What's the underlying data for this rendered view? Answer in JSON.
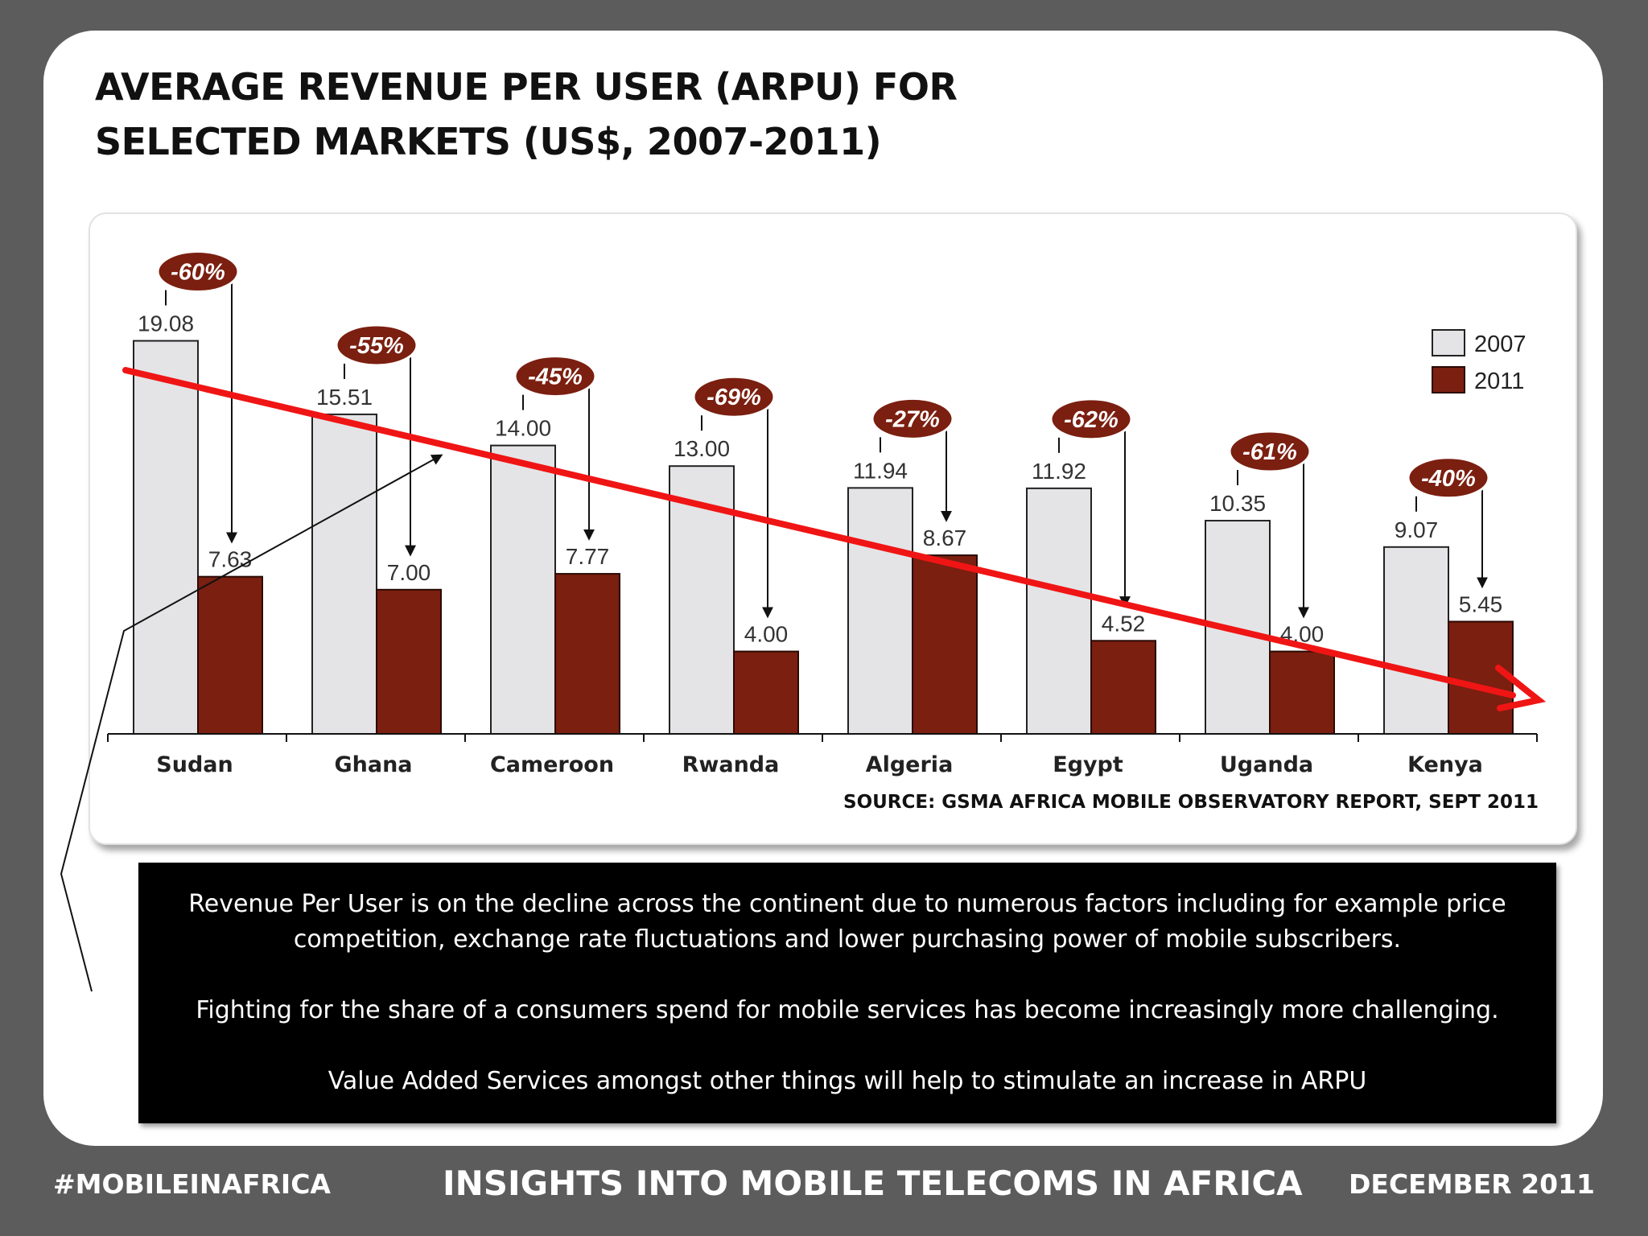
{
  "title": {
    "line1": "AVERAGE REVENUE PER USER (ARPU) FOR",
    "line2": "SELECTED MARKETS (US$, 2007-2011)"
  },
  "chart_data": {
    "type": "bar",
    "categories": [
      "Sudan",
      "Ghana",
      "Cameroon",
      "Rwanda",
      "Algeria",
      "Egypt",
      "Uganda",
      "Kenya"
    ],
    "series": [
      {
        "name": "2007",
        "values": [
          19.08,
          15.51,
          14.0,
          13.0,
          11.94,
          11.92,
          10.35,
          9.07
        ],
        "labels": [
          "19.08",
          "15.51",
          "14.00",
          "13.00",
          "11.94",
          "11.92",
          "10.35",
          "9.07"
        ]
      },
      {
        "name": "2011",
        "values": [
          7.63,
          7.0,
          7.77,
          4.0,
          8.67,
          4.52,
          4.0,
          5.45
        ],
        "labels": [
          "7.63",
          "7.00",
          "7.77",
          "4.00",
          "8.67",
          "4.52",
          "4.00",
          "5.45"
        ]
      }
    ],
    "change_labels": [
      "-60%",
      "-55%",
      "-45%",
      "-69%",
      "-27%",
      "-62%",
      "-61%",
      "-40%"
    ],
    "ylim": [
      0,
      20
    ],
    "grid": false,
    "legend": "top-right",
    "colors": {
      "2007": "#e4e4e6",
      "2011": "#7b1f10",
      "trend": "#f01515",
      "badge": "#7b1f10"
    }
  },
  "source": "SOURCE: GSMA AFRICA MOBILE OBSERVATORY REPORT, SEPT 2011",
  "note": {
    "p1": "Revenue Per User is on the decline across the continent due to numerous factors including for example price competition, exchange rate fluctuations and lower purchasing power of mobile subscribers.",
    "p2": "Fighting for the share of a consumers spend for mobile services has become increasingly more challenging.",
    "p3": "Value Added Services amongst other things will help to stimulate an increase in ARPU"
  },
  "footer": {
    "left": "#MOBILEINAFRICA",
    "center": "INSIGHTS INTO MOBILE TELECOMS IN AFRICA",
    "right": "DECEMBER 2011"
  }
}
